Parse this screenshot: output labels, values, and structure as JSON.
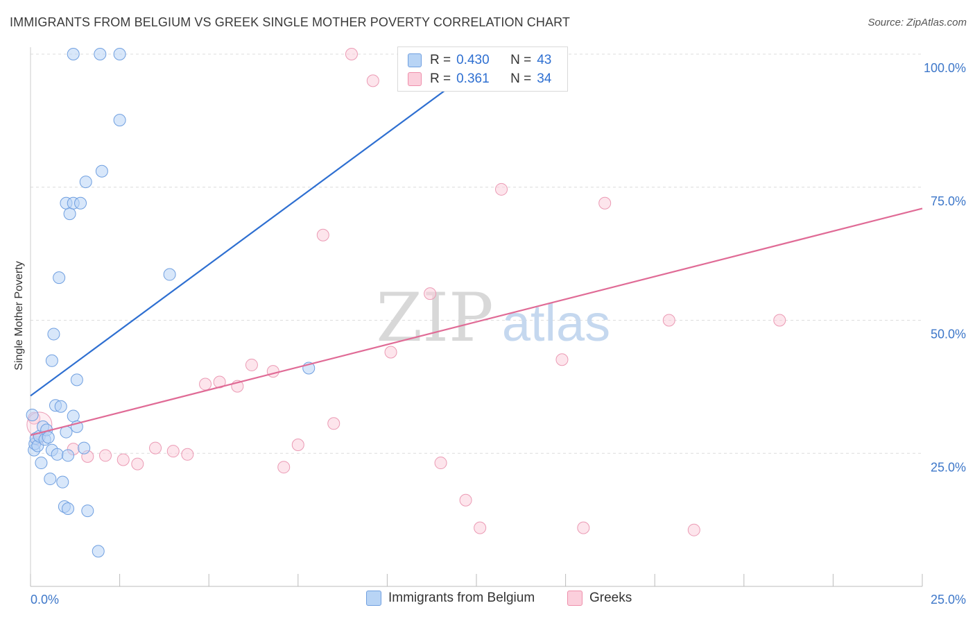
{
  "title": "IMMIGRANTS FROM BELGIUM VS GREEK SINGLE MOTHER POVERTY CORRELATION CHART",
  "source": "Source: ZipAtlas.com",
  "watermark": {
    "zip": "ZIP",
    "atlas": "atlas"
  },
  "stats": [
    {
      "r_label": "R =",
      "r_value": "0.430",
      "n_label": "N =",
      "n_value": "43",
      "color": "#a8c8f0",
      "border": "#6f9fe0"
    },
    {
      "r_label": "R =",
      "r_value": "0.361",
      "n_label": "N =",
      "n_value": "34",
      "color": "#f9c0d0",
      "border": "#ee8fab"
    }
  ],
  "legend": {
    "series1": "Immigrants from Belgium",
    "series2": "Greeks"
  },
  "colors": {
    "blue": "#2e6fd1",
    "pink": "#e06b96",
    "blue_fill": "#b8d4f5",
    "pink_fill": "#fbcfdc",
    "axis_text": "#3d77c9"
  },
  "chart_data": {
    "type": "scatter",
    "title": "IMMIGRANTS FROM BELGIUM VS GREEK SINGLE MOTHER POVERTY CORRELATION CHART",
    "xlabel": "",
    "ylabel": "Single Mother Poverty",
    "xlim": [
      0,
      25
    ],
    "ylim": [
      0,
      100
    ],
    "x_ticks_labels": [
      "0.0%",
      "25.0%"
    ],
    "y_ticks_labels": [
      "25.0%",
      "50.0%",
      "75.0%",
      "100.0%"
    ],
    "grid": "horizontal dashed",
    "legend_position": "bottom-center",
    "series": [
      {
        "name": "Immigrants from Belgium",
        "color": "#2e6fd1",
        "trend": {
          "x": [
            0,
            13.0
          ],
          "y": [
            35.8,
            100
          ]
        },
        "points": [
          [
            0.05,
            32.2
          ],
          [
            0.1,
            25.6
          ],
          [
            0.12,
            26.8
          ],
          [
            0.15,
            27.8
          ],
          [
            0.2,
            26.4
          ],
          [
            0.25,
            28.2
          ],
          [
            0.3,
            23.2
          ],
          [
            0.35,
            30.0
          ],
          [
            0.4,
            27.6
          ],
          [
            0.45,
            29.4
          ],
          [
            0.5,
            28.0
          ],
          [
            0.55,
            20.2
          ],
          [
            0.6,
            42.4
          ],
          [
            0.65,
            47.4
          ],
          [
            0.6,
            25.6
          ],
          [
            0.7,
            34.0
          ],
          [
            0.75,
            24.8
          ],
          [
            0.8,
            58.0
          ],
          [
            0.85,
            33.8
          ],
          [
            0.9,
            19.6
          ],
          [
            0.95,
            15.0
          ],
          [
            1.0,
            29.0
          ],
          [
            1.05,
            24.6
          ],
          [
            1.0,
            72.0
          ],
          [
            1.05,
            14.6
          ],
          [
            1.1,
            70.0
          ],
          [
            1.2,
            72.0
          ],
          [
            1.2,
            32.0
          ],
          [
            1.3,
            30.0
          ],
          [
            1.3,
            38.8
          ],
          [
            1.4,
            72.0
          ],
          [
            1.5,
            26.0
          ],
          [
            1.55,
            76.0
          ],
          [
            1.6,
            14.2
          ],
          [
            1.2,
            100.0
          ],
          [
            1.9,
            6.6
          ],
          [
            1.95,
            100.0
          ],
          [
            2.0,
            78.0
          ],
          [
            2.5,
            100.0
          ],
          [
            2.5,
            87.6
          ],
          [
            3.9,
            58.6
          ],
          [
            7.8,
            41.0
          ],
          [
            14.5,
            100.0
          ]
        ]
      },
      {
        "name": "Greeks",
        "color": "#e06b96",
        "trend": {
          "x": [
            0,
            25
          ],
          "y": [
            28.4,
            71.0
          ]
        },
        "points": [
          [
            0.1,
            31.6
          ],
          [
            0.2,
            27.6
          ],
          [
            1.2,
            25.8
          ],
          [
            1.6,
            24.4
          ],
          [
            2.1,
            24.6
          ],
          [
            2.6,
            23.8
          ],
          [
            3.0,
            23.0
          ],
          [
            3.5,
            26.0
          ],
          [
            4.0,
            25.4
          ],
          [
            4.4,
            24.8
          ],
          [
            4.9,
            38.0
          ],
          [
            5.3,
            38.4
          ],
          [
            5.8,
            37.6
          ],
          [
            6.2,
            41.6
          ],
          [
            6.8,
            40.4
          ],
          [
            7.1,
            22.4
          ],
          [
            7.5,
            26.6
          ],
          [
            8.2,
            66.0
          ],
          [
            8.5,
            30.6
          ],
          [
            9.0,
            100.0
          ],
          [
            9.6,
            95.0
          ],
          [
            10.1,
            44.0
          ],
          [
            11.2,
            55.0
          ],
          [
            11.5,
            23.2
          ],
          [
            12.2,
            16.2
          ],
          [
            12.6,
            11.0
          ],
          [
            13.2,
            74.6
          ],
          [
            13.9,
            100.0
          ],
          [
            14.9,
            42.6
          ],
          [
            15.5,
            11.0
          ],
          [
            16.1,
            72.0
          ],
          [
            17.9,
            50.0
          ],
          [
            18.6,
            10.6
          ],
          [
            21.0,
            50.0
          ]
        ]
      }
    ]
  }
}
